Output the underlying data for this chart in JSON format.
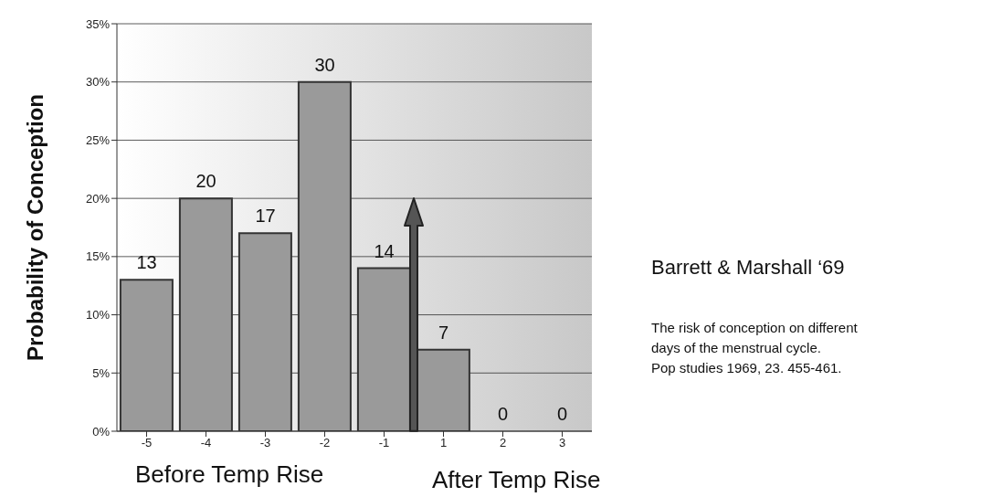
{
  "chart_data": {
    "type": "bar",
    "ylabel": "Probability of  Conception",
    "categories": [
      "-5",
      "-4",
      "-3",
      "-2",
      "-1",
      "1",
      "2",
      "3"
    ],
    "values": [
      13,
      20,
      17,
      30,
      14,
      7,
      0,
      0
    ],
    "color": "#9a9a9a",
    "data_labels": true,
    "grid": "y",
    "ylim": [
      0,
      35
    ],
    "yticks": [
      {
        "value": 0,
        "label": "0%"
      },
      {
        "value": 5,
        "label": "5%"
      },
      {
        "value": 10,
        "label": "10%"
      },
      {
        "value": 15,
        "label": "15%"
      },
      {
        "value": 20,
        "label": "20%"
      },
      {
        "value": 25,
        "label": "25%"
      },
      {
        "value": 30,
        "label": "30%"
      },
      {
        "value": 35,
        "label": "35%"
      }
    ],
    "annotations": [
      "Before Temp Rise",
      "After Temp Rise",
      "Barrett & Marshall ‘69",
      "The risk of conception on different\ndays of the menstrual cycle.\nPop studies 1969, 23. 455-461."
    ]
  }
}
